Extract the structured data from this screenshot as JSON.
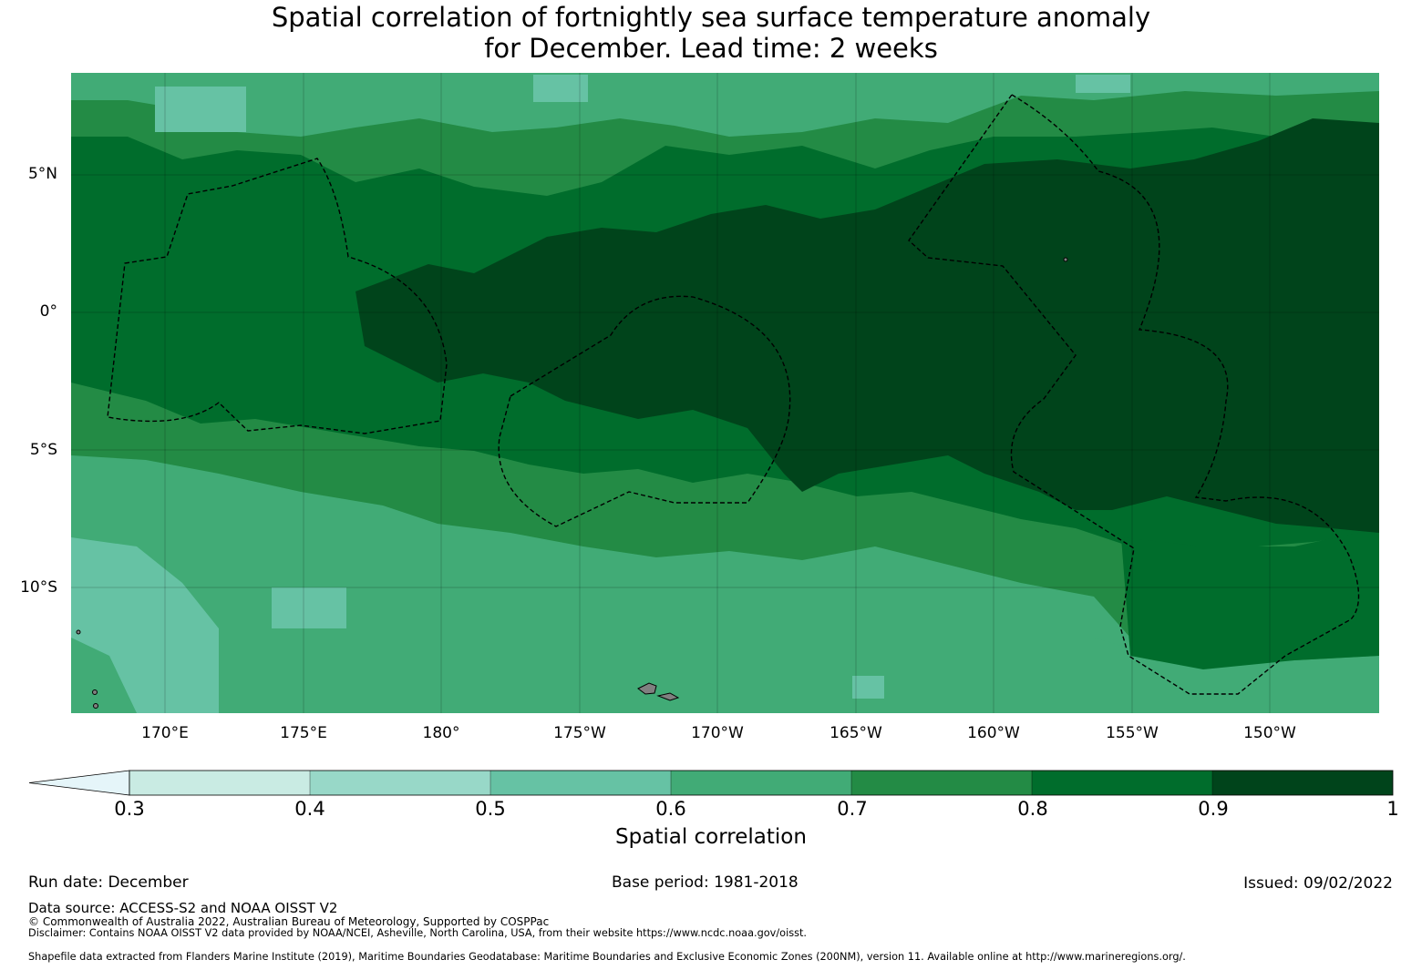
{
  "title": {
    "line1": "Spatial correlation of fortnightly sea surface temperature anomaly",
    "line2": "for December. Lead time: 2 weeks"
  },
  "map": {
    "lat_ticks": [
      "5°N",
      "0°",
      "5°S",
      "10°S"
    ],
    "lon_ticks": [
      "170°E",
      "175°E",
      "180°",
      "175°W",
      "170°W",
      "165°W",
      "160°W",
      "155°W",
      "150°W"
    ],
    "lat_range": [
      -14.5,
      8.7
    ],
    "lon_range": [
      166.6,
      213.9
    ]
  },
  "colorbar": {
    "label": "Spatial correlation",
    "ticks": [
      "0.3",
      "0.4",
      "0.5",
      "0.6",
      "0.7",
      "0.8",
      "0.9",
      "1"
    ],
    "bins": [
      {
        "from": 0.3,
        "to": 0.4,
        "color": "#c9ebe3"
      },
      {
        "from": 0.4,
        "to": 0.5,
        "color": "#98d8c8"
      },
      {
        "from": 0.5,
        "to": 0.6,
        "color": "#66c2a4"
      },
      {
        "from": 0.6,
        "to": 0.7,
        "color": "#41ab76"
      },
      {
        "from": 0.7,
        "to": 0.8,
        "color": "#238b45"
      },
      {
        "from": 0.8,
        "to": 0.9,
        "color": "#006d2c"
      },
      {
        "from": 0.9,
        "to": 1.0,
        "color": "#00441b"
      }
    ],
    "extend_color": "#e5f5f9"
  },
  "footer": {
    "run_date": "Run date: December",
    "base_period": "Base period: 1981-2018",
    "issued": "Issued: 09/02/2022",
    "data_source": "Data source: ACCESS-S2 and NOAA OISST V2",
    "copyright": "© Commonwealth of Australia 2022, Australian Bureau of Meteorology, Supported by COSPPac",
    "disclaimer": "Disclaimer: Contains NOAA OISST V2 data provided by NOAA/NCEI, Asheville, North Carolina, USA, from their website https://www.ncdc.noaa.gov/oisst.",
    "shapefile": "Shapefile data extracted from Flanders Marine Institute (2019), Maritime Boundaries Geodatabase: Maritime Boundaries and Exclusive Economic Zones (200NM), version 11. Available online at http://www.marineregions.org/."
  }
}
